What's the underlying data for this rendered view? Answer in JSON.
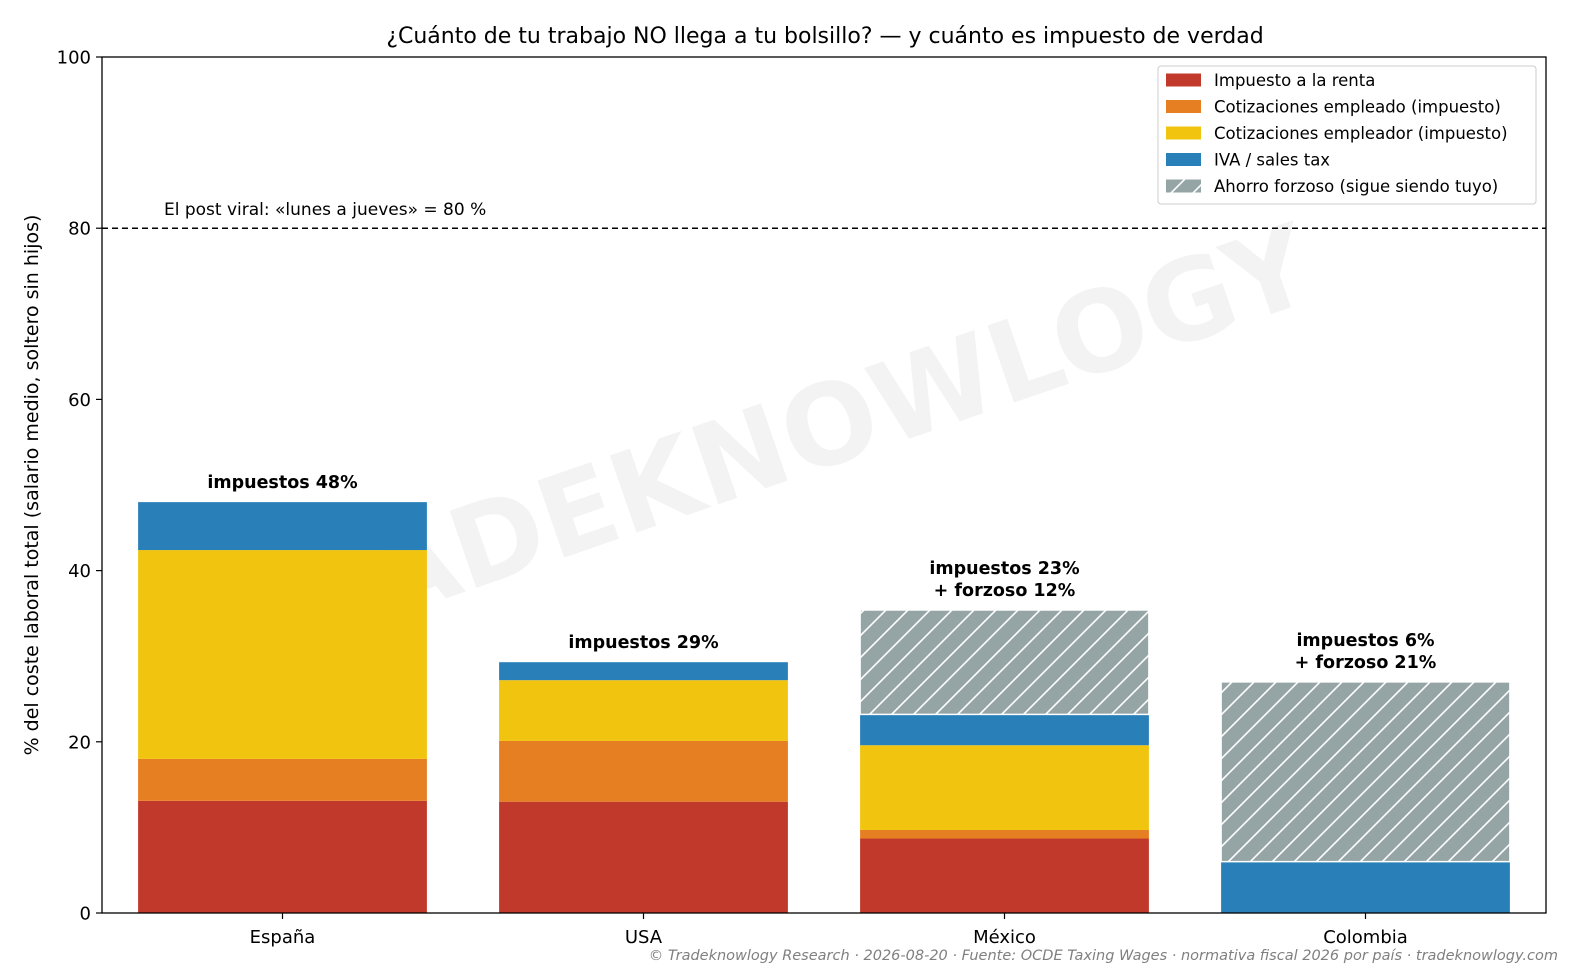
{
  "chart_data": {
    "type": "bar",
    "stacked": true,
    "title": "¿Cuánto de tu trabajo NO llega a tu bolsillo? — y cuánto es impuesto de verdad",
    "ylabel": "% del coste laboral total (salario medio, soltero sin hijos)",
    "xlabel": "",
    "ylim": [
      0,
      100
    ],
    "yticks": [
      0,
      20,
      40,
      60,
      80,
      100
    ],
    "grid": false,
    "legend_position": "top-right",
    "categories": [
      "España",
      "USA",
      "México",
      "Colombia"
    ],
    "series": [
      {
        "name": "Impuesto a la renta",
        "color": "#c0392b",
        "hatch": false,
        "values": [
          13.1,
          13.0,
          8.7,
          0
        ]
      },
      {
        "name": "Cotizaciones empleado (impuesto)",
        "color": "#e67e22",
        "hatch": false,
        "values": [
          4.9,
          7.1,
          1.0,
          0
        ]
      },
      {
        "name": "Cotizaciones empleador (impuesto)",
        "color": "#f1c40f",
        "hatch": false,
        "values": [
          24.4,
          7.1,
          9.9,
          0
        ]
      },
      {
        "name": "IVA / sales tax",
        "color": "#2980b9",
        "hatch": false,
        "values": [
          5.6,
          2.1,
          3.6,
          6.0
        ]
      },
      {
        "name": "Ahorro forzoso (sigue siendo tuyo)",
        "color": "#95a5a6",
        "hatch": true,
        "values": [
          0,
          0,
          12.2,
          21.0
        ]
      }
    ],
    "bar_labels": [
      [
        "impuestos 48%"
      ],
      [
        "impuestos 29%"
      ],
      [
        "impuestos 23%",
        "+ forzoso 12%"
      ],
      [
        "impuestos 6%",
        "+ forzoso 21%"
      ]
    ],
    "reference_line": {
      "value": 80,
      "label": "El post viral: «lunes a jueves» = 80 %"
    },
    "watermark": "TRADEKNOWLOGY",
    "footer": "© Tradeknowlogy Research   ·   2026-08-20   ·   Fuente: OCDE Taxing Wages · normativa fiscal 2026 por país   ·   tradeknowlogy.com"
  }
}
